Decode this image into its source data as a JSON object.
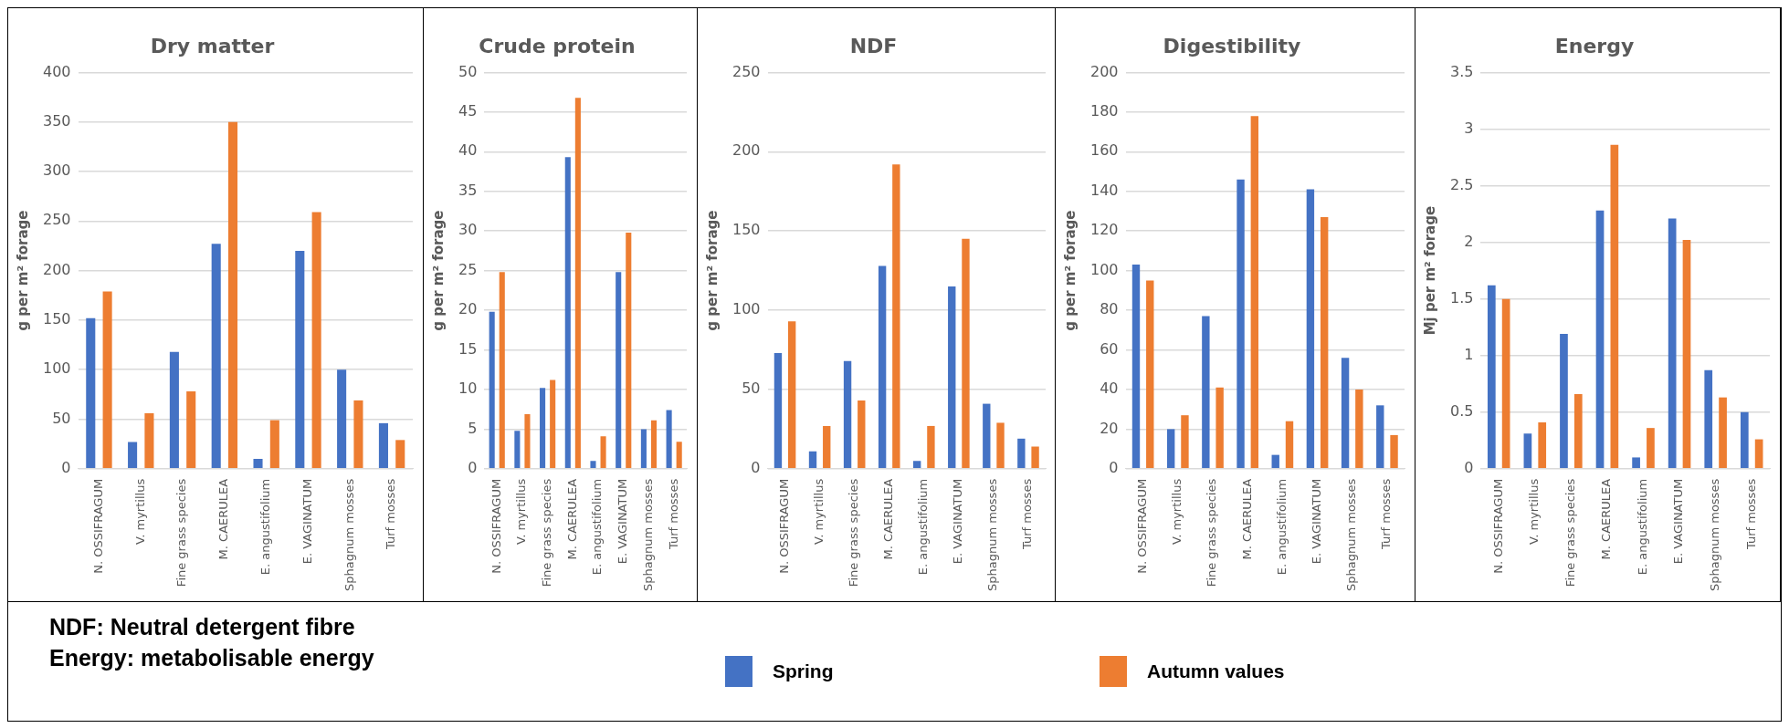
{
  "chart_data": [
    {
      "type": "bar",
      "title": "Dry matter",
      "ylabel": "g per m² forage",
      "categories": [
        "N. OSSIFRAGUM",
        "V. myrtillus",
        "Fine grass species",
        "M. CAERULEA",
        "E. angustifolium",
        "E. VAGINATUM",
        "Sphagnum mosses",
        "Turf mosses"
      ],
      "series": [
        {
          "name": "Spring",
          "color": "#4472c4",
          "values": [
            152,
            27,
            118,
            227,
            10,
            220,
            100,
            46
          ]
        },
        {
          "name": "Autumn values",
          "color": "#ed7d31",
          "values": [
            179,
            56,
            78,
            350,
            49,
            259,
            69,
            29
          ]
        }
      ],
      "ylim": [
        0,
        400
      ],
      "yticks": [
        0,
        50,
        100,
        150,
        200,
        250,
        300,
        350,
        400
      ],
      "grid": "y",
      "legend": "bottom"
    },
    {
      "type": "bar",
      "title": "Crude protein",
      "ylabel": "g per m² forage",
      "categories": [
        "N. OSSIFRAGUM",
        "V. myrtillus",
        "Fine grass species",
        "M. CAERULEA",
        "E. angustifolium",
        "E. VAGINATUM",
        "Sphagnum mosses",
        "Turf mosses"
      ],
      "series": [
        {
          "color": "#4472c4",
          "values": [
            19.8,
            4.8,
            10.2,
            39.3,
            1.0,
            24.8,
            5.0,
            7.4
          ]
        },
        {
          "color": "#ed7d31",
          "values": [
            24.8,
            6.9,
            11.2,
            46.8,
            4.1,
            29.8,
            6.1,
            3.4
          ]
        }
      ],
      "ylim": [
        0,
        50
      ],
      "yticks": [
        0,
        5,
        10,
        15,
        20,
        25,
        30,
        35,
        40,
        45,
        50
      ],
      "grid": "y"
    },
    {
      "type": "bar",
      "title": "NDF",
      "ylabel": "g per m² forage",
      "annotations": [
        "NDF: Neutral detergent fibre"
      ],
      "categories": [
        "N. OSSIFRAGUM",
        "V. myrtillus",
        "Fine grass species",
        "M. CAERULEA",
        "E. angustifolium",
        "E. VAGINATUM",
        "Sphagnum mosses",
        "Turf mosses"
      ],
      "series": [
        {
          "color": "#4472c4",
          "values": [
            73,
            11,
            68,
            128,
            5,
            115,
            41,
            19
          ]
        },
        {
          "color": "#ed7d31",
          "values": [
            93,
            27,
            43,
            192,
            27,
            145,
            29,
            14
          ]
        }
      ],
      "ylim": [
        0,
        250
      ],
      "yticks": [
        0,
        50,
        100,
        150,
        200,
        250
      ],
      "grid": "y"
    },
    {
      "type": "bar",
      "title": "Digestibility",
      "ylabel": "g per m² forage",
      "categories": [
        "N. OSSIFRAGUM",
        "V. myrtillus",
        "Fine grass species",
        "M. CAERULEA",
        "E. angustifolium",
        "E. VAGINATUM",
        "Sphagnum mosses",
        "Turf mosses"
      ],
      "series": [
        {
          "color": "#4472c4",
          "values": [
            103,
            20,
            77,
            146,
            7,
            141,
            56,
            32
          ]
        },
        {
          "color": "#ed7d31",
          "values": [
            95,
            27,
            41,
            178,
            24,
            127,
            40,
            17
          ]
        }
      ],
      "ylim": [
        0,
        200
      ],
      "yticks": [
        0,
        20,
        40,
        60,
        80,
        100,
        120,
        140,
        160,
        180,
        200
      ],
      "grid": "y"
    },
    {
      "type": "bar",
      "title": "Energy",
      "ylabel": "Mj per m² forage",
      "annotations": [
        "Energy: metabolisable energy"
      ],
      "categories": [
        "N. OSSIFRAGUM",
        "V. myrtillus",
        "Fine grass species",
        "M. CAERULEA",
        "E. angustifolium",
        "E. VAGINATUM",
        "Sphagnum mosses",
        "Turf mosses"
      ],
      "series": [
        {
          "color": "#4472c4",
          "values": [
            1.62,
            0.31,
            1.19,
            2.28,
            0.1,
            2.21,
            0.87,
            0.5
          ]
        },
        {
          "color": "#ed7d31",
          "values": [
            1.5,
            0.41,
            0.66,
            2.86,
            0.36,
            2.02,
            0.63,
            0.26
          ]
        }
      ],
      "ylim": [
        0,
        3.5
      ],
      "yticks": [
        0,
        0.5,
        1,
        1.5,
        2,
        2.5,
        3,
        3.5
      ],
      "grid": "y"
    }
  ]
}
